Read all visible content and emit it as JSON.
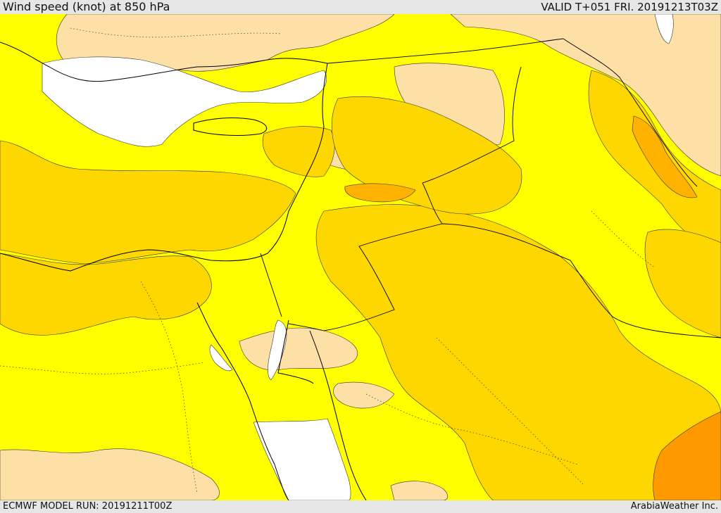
{
  "header": {
    "title": "Wind speed (knot) at 850 hPa",
    "valid": "VALID T+051 FRI. 20191213T03Z"
  },
  "footer": {
    "model_run": "ECMWF MODEL RUN: 20191211T00Z",
    "credit": "ArabiaWeather Inc."
  },
  "colors": {
    "band_lightest": "#fde0a6",
    "band_yellow": "#ffff00",
    "band_gold": "#ffd700",
    "band_orange": "#ffb300",
    "band_deep_orange": "#ff9900",
    "calm_white": "#ffffff",
    "coastline": "#000000"
  }
}
